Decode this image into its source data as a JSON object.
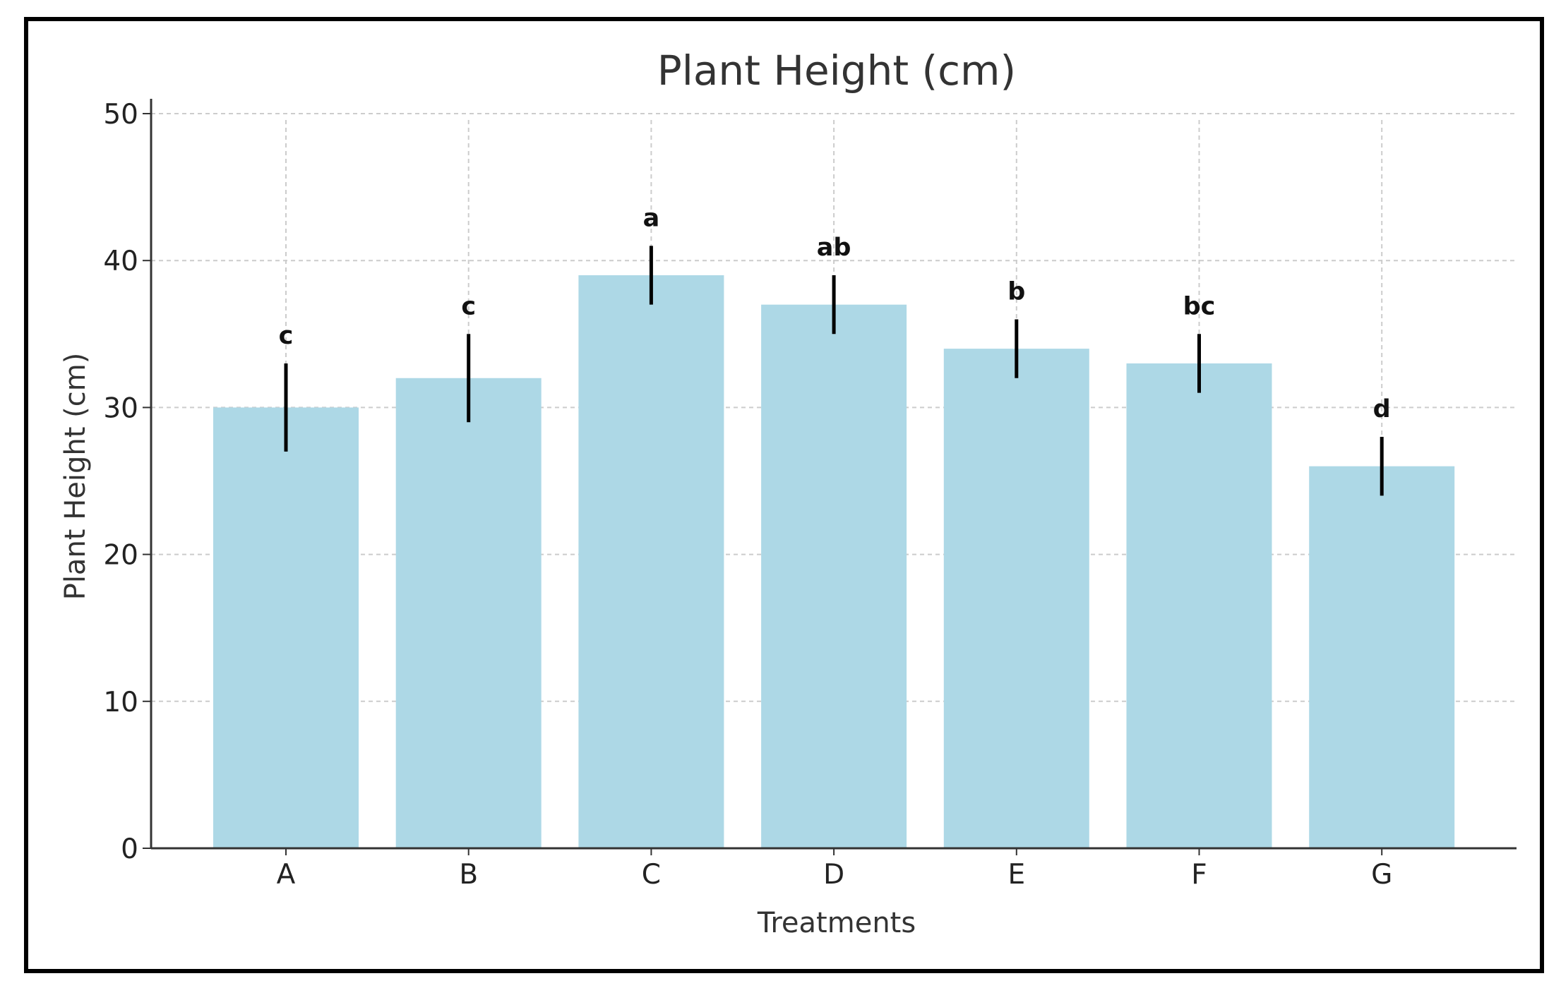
{
  "chart_data": {
    "type": "bar",
    "title": "Plant Height (cm)",
    "xlabel": "Treatments",
    "ylabel": "Plant Height (cm)",
    "categories": [
      "A",
      "B",
      "C",
      "D",
      "E",
      "F",
      "G"
    ],
    "values": [
      30,
      32,
      39,
      37,
      34,
      33,
      26
    ],
    "errors": [
      3,
      3,
      2,
      2,
      2,
      2,
      2
    ],
    "letters": [
      "c",
      "c",
      "a",
      "ab",
      "b",
      "bc",
      "d"
    ],
    "ylim": [
      0,
      50
    ],
    "yticks": [
      "0",
      "10",
      "20",
      "30",
      "40",
      "50"
    ],
    "grid": true,
    "colors": {
      "bar": "#add8e6",
      "error": "#000000",
      "grid": "#cccccc",
      "axis": "#333333"
    }
  }
}
